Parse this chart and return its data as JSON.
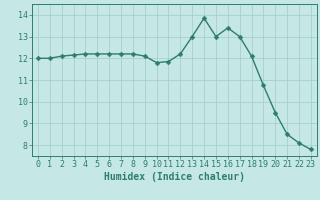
{
  "x": [
    0,
    1,
    2,
    3,
    4,
    5,
    6,
    7,
    8,
    9,
    10,
    11,
    12,
    13,
    14,
    15,
    16,
    17,
    18,
    19,
    20,
    21,
    22,
    23
  ],
  "y": [
    12.0,
    12.0,
    12.1,
    12.15,
    12.2,
    12.2,
    12.2,
    12.2,
    12.2,
    12.1,
    11.8,
    11.85,
    12.2,
    13.0,
    13.85,
    13.0,
    13.4,
    13.0,
    12.1,
    10.75,
    9.5,
    8.5,
    8.1,
    7.8
  ],
  "line_color": "#2e7d6e",
  "marker": "D",
  "markersize": 2.5,
  "linewidth": 1.0,
  "bg_color": "#c5e8e4",
  "grid_color": "#a8d0cb",
  "xlabel": "Humidex (Indice chaleur)",
  "xlabel_fontsize": 7,
  "tick_fontsize": 6,
  "ylim": [
    7.5,
    14.5
  ],
  "xlim": [
    -0.5,
    23.5
  ],
  "yticks": [
    8,
    9,
    10,
    11,
    12,
    13,
    14
  ],
  "xticks": [
    0,
    1,
    2,
    3,
    4,
    5,
    6,
    7,
    8,
    9,
    10,
    11,
    12,
    13,
    14,
    15,
    16,
    17,
    18,
    19,
    20,
    21,
    22,
    23
  ]
}
